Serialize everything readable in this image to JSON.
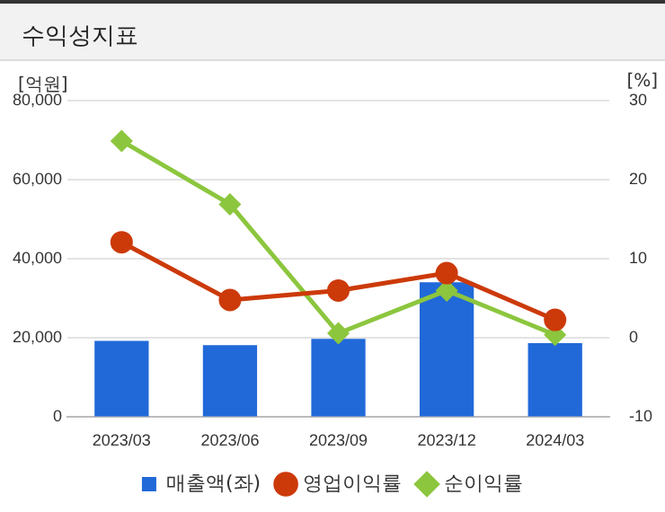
{
  "chart_data": {
    "type": "bar",
    "title": "수익성지표",
    "ylabel": "[억원]",
    "y2label": "[%]",
    "categories": [
      "2023/03",
      "2023/06",
      "2023/09",
      "2023/12",
      "2024/03"
    ],
    "series": [
      {
        "name": "매출액(좌)",
        "color": "#2169d9",
        "values": [
          19300,
          18200,
          19800,
          34100,
          18700
        ]
      },
      {
        "name": "영업이익률",
        "type": "line",
        "axis": "y2",
        "color": "#cc3a0a",
        "marker": "circle",
        "values": [
          12.1,
          4.8,
          6.0,
          8.2,
          2.3
        ]
      },
      {
        "name": "순이익률",
        "type": "line",
        "axis": "y2",
        "color": "#8cc63e",
        "marker": "diamond",
        "values": [
          24.9,
          16.9,
          0.6,
          6.0,
          0.4
        ]
      }
    ],
    "ylim": [
      0,
      80000
    ],
    "yticks": [
      {
        "value": 0,
        "label": "0"
      },
      {
        "value": 20000,
        "label": "20,000"
      },
      {
        "value": 40000,
        "label": "40,000"
      },
      {
        "value": 60000,
        "label": "60,000"
      },
      {
        "value": 80000,
        "label": "80,000"
      }
    ],
    "y2lim": [
      -10,
      30
    ],
    "y2ticks": [
      -10,
      0,
      10,
      20,
      30
    ],
    "grid": "y",
    "legend": "bottom"
  }
}
